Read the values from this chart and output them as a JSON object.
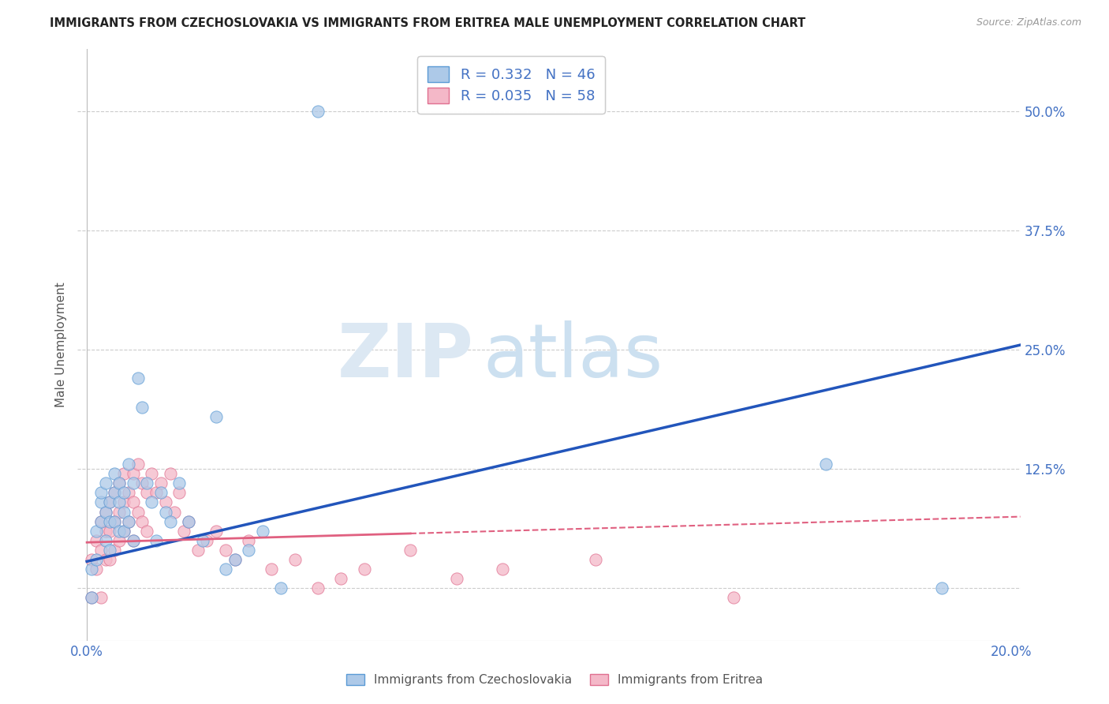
{
  "title": "IMMIGRANTS FROM CZECHOSLOVAKIA VS IMMIGRANTS FROM ERITREA MALE UNEMPLOYMENT CORRELATION CHART",
  "source": "Source: ZipAtlas.com",
  "ylabel": "Male Unemployment",
  "xlim": [
    -0.002,
    0.202
  ],
  "ylim": [
    -0.055,
    0.565
  ],
  "ytick_positions": [
    0.0,
    0.125,
    0.25,
    0.375,
    0.5
  ],
  "ytick_labels": [
    "",
    "12.5%",
    "25.0%",
    "37.5%",
    "50.0%"
  ],
  "xtick_positions": [
    0.0,
    0.04,
    0.08,
    0.12,
    0.16,
    0.2
  ],
  "xtick_labels": [
    "0.0%",
    "",
    "",
    "",
    "",
    "20.0%"
  ],
  "color_czech": "#adc9e8",
  "color_czech_edge": "#5b9bd5",
  "color_eritrea": "#f4b8c8",
  "color_eritrea_edge": "#e07090",
  "color_line_czech": "#2255bb",
  "color_line_eritrea": "#e06080",
  "czech_line_x": [
    0.0,
    0.202
  ],
  "czech_line_y": [
    0.028,
    0.255
  ],
  "eritrea_line_x": [
    0.0,
    0.202
  ],
  "eritrea_line_y": [
    0.048,
    0.075
  ],
  "scatter_czech_x": [
    0.001,
    0.001,
    0.002,
    0.002,
    0.003,
    0.003,
    0.003,
    0.004,
    0.004,
    0.004,
    0.005,
    0.005,
    0.005,
    0.006,
    0.006,
    0.006,
    0.007,
    0.007,
    0.007,
    0.008,
    0.008,
    0.008,
    0.009,
    0.009,
    0.01,
    0.01,
    0.011,
    0.012,
    0.013,
    0.014,
    0.015,
    0.016,
    0.017,
    0.018,
    0.02,
    0.022,
    0.025,
    0.028,
    0.03,
    0.032,
    0.035,
    0.038,
    0.042,
    0.05,
    0.16,
    0.185
  ],
  "scatter_czech_y": [
    0.02,
    -0.01,
    0.06,
    0.03,
    0.09,
    0.07,
    0.1,
    0.08,
    0.05,
    0.11,
    0.07,
    0.04,
    0.09,
    0.1,
    0.07,
    0.12,
    0.09,
    0.06,
    0.11,
    0.08,
    0.1,
    0.06,
    0.13,
    0.07,
    0.11,
    0.05,
    0.22,
    0.19,
    0.11,
    0.09,
    0.05,
    0.1,
    0.08,
    0.07,
    0.11,
    0.07,
    0.05,
    0.18,
    0.02,
    0.03,
    0.04,
    0.06,
    0.0,
    0.5,
    0.13,
    0.0
  ],
  "scatter_eritrea_x": [
    0.001,
    0.001,
    0.002,
    0.002,
    0.003,
    0.003,
    0.003,
    0.004,
    0.004,
    0.004,
    0.005,
    0.005,
    0.005,
    0.006,
    0.006,
    0.006,
    0.007,
    0.007,
    0.007,
    0.008,
    0.008,
    0.008,
    0.009,
    0.009,
    0.01,
    0.01,
    0.01,
    0.011,
    0.011,
    0.012,
    0.012,
    0.013,
    0.013,
    0.014,
    0.015,
    0.016,
    0.017,
    0.018,
    0.019,
    0.02,
    0.021,
    0.022,
    0.024,
    0.026,
    0.028,
    0.03,
    0.032,
    0.035,
    0.04,
    0.045,
    0.05,
    0.055,
    0.06,
    0.07,
    0.08,
    0.09,
    0.11,
    0.14
  ],
  "scatter_eritrea_y": [
    0.03,
    -0.01,
    0.05,
    0.02,
    0.07,
    0.04,
    -0.01,
    0.06,
    0.03,
    0.08,
    0.06,
    0.03,
    0.09,
    0.07,
    0.04,
    0.1,
    0.08,
    0.05,
    0.11,
    0.09,
    0.06,
    0.12,
    0.1,
    0.07,
    0.12,
    0.09,
    0.05,
    0.13,
    0.08,
    0.11,
    0.07,
    0.1,
    0.06,
    0.12,
    0.1,
    0.11,
    0.09,
    0.12,
    0.08,
    0.1,
    0.06,
    0.07,
    0.04,
    0.05,
    0.06,
    0.04,
    0.03,
    0.05,
    0.02,
    0.03,
    0.0,
    0.01,
    0.02,
    0.04,
    0.01,
    0.02,
    0.03,
    -0.01
  ],
  "watermark_zip_color": "#dce8f3",
  "watermark_atlas_color": "#cce0f0",
  "legend_top_R1": "R = 0.332",
  "legend_top_N1": "N = 46",
  "legend_top_R2": "R = 0.035",
  "legend_top_N2": "N = 58"
}
